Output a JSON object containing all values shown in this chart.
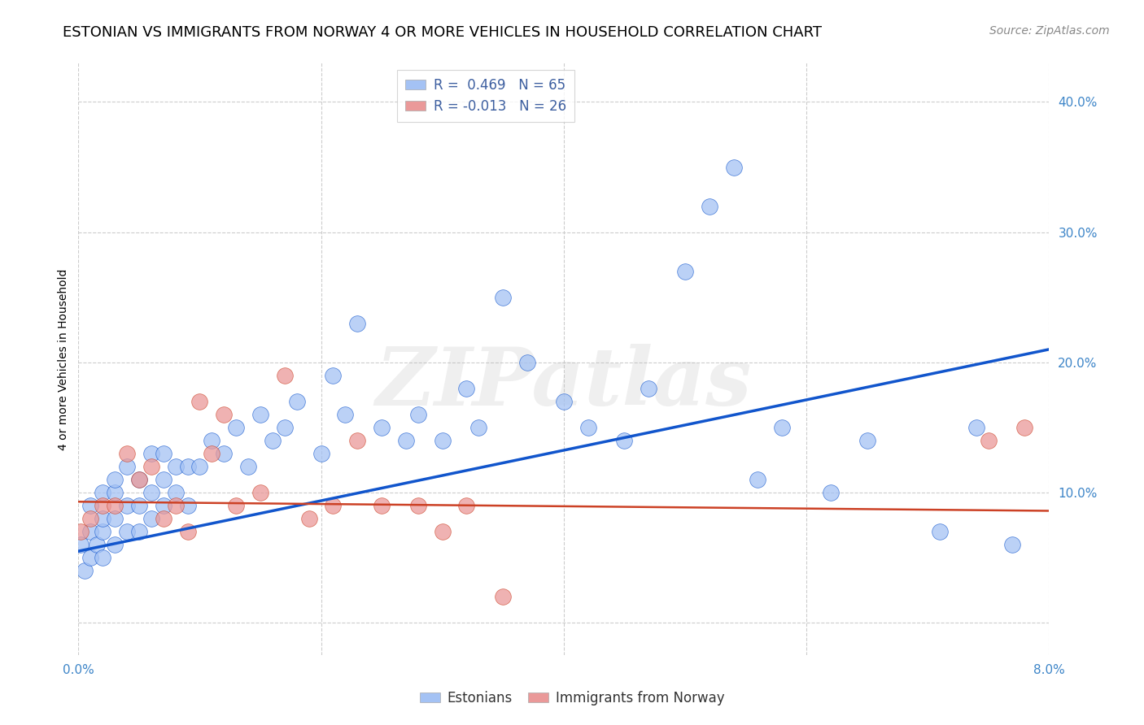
{
  "title": "ESTONIAN VS IMMIGRANTS FROM NORWAY 4 OR MORE VEHICLES IN HOUSEHOLD CORRELATION CHART",
  "source": "Source: ZipAtlas.com",
  "ylabel": "4 or more Vehicles in Household",
  "xmin": 0.0,
  "xmax": 0.08,
  "ymin": -0.025,
  "ymax": 0.43,
  "yticks": [
    0.0,
    0.1,
    0.2,
    0.3,
    0.4
  ],
  "ytick_labels": [
    "",
    "10.0%",
    "20.0%",
    "30.0%",
    "40.0%"
  ],
  "xticks": [
    0.0,
    0.02,
    0.04,
    0.06,
    0.08
  ],
  "xtick_labels": [
    "0.0%",
    "",
    "",
    "",
    "8.0%"
  ],
  "blue_R": 0.469,
  "blue_N": 65,
  "pink_R": -0.013,
  "pink_N": 26,
  "blue_color": "#a4c2f4",
  "pink_color": "#ea9999",
  "blue_line_color": "#1155cc",
  "pink_line_color": "#cc4125",
  "legend_label_blue": "Estonians",
  "legend_label_pink": "Immigrants from Norway",
  "watermark": "ZIPatlas",
  "blue_scatter_x": [
    0.0002,
    0.0005,
    0.001,
    0.001,
    0.001,
    0.0015,
    0.002,
    0.002,
    0.002,
    0.002,
    0.003,
    0.003,
    0.003,
    0.003,
    0.004,
    0.004,
    0.004,
    0.005,
    0.005,
    0.005,
    0.006,
    0.006,
    0.006,
    0.007,
    0.007,
    0.007,
    0.008,
    0.008,
    0.009,
    0.009,
    0.01,
    0.011,
    0.012,
    0.013,
    0.014,
    0.015,
    0.016,
    0.017,
    0.018,
    0.02,
    0.021,
    0.022,
    0.023,
    0.025,
    0.027,
    0.028,
    0.03,
    0.032,
    0.033,
    0.035,
    0.037,
    0.04,
    0.042,
    0.045,
    0.047,
    0.05,
    0.052,
    0.054,
    0.056,
    0.058,
    0.062,
    0.065,
    0.071,
    0.074,
    0.077
  ],
  "blue_scatter_y": [
    0.06,
    0.04,
    0.05,
    0.07,
    0.09,
    0.06,
    0.05,
    0.07,
    0.08,
    0.1,
    0.06,
    0.08,
    0.1,
    0.11,
    0.07,
    0.09,
    0.12,
    0.07,
    0.09,
    0.11,
    0.08,
    0.1,
    0.13,
    0.09,
    0.11,
    0.13,
    0.1,
    0.12,
    0.09,
    0.12,
    0.12,
    0.14,
    0.13,
    0.15,
    0.12,
    0.16,
    0.14,
    0.15,
    0.17,
    0.13,
    0.19,
    0.16,
    0.23,
    0.15,
    0.14,
    0.16,
    0.14,
    0.18,
    0.15,
    0.25,
    0.2,
    0.17,
    0.15,
    0.14,
    0.18,
    0.27,
    0.32,
    0.35,
    0.11,
    0.15,
    0.1,
    0.14,
    0.07,
    0.15,
    0.06
  ],
  "pink_scatter_x": [
    0.0002,
    0.001,
    0.002,
    0.003,
    0.004,
    0.005,
    0.006,
    0.007,
    0.008,
    0.009,
    0.01,
    0.011,
    0.012,
    0.013,
    0.015,
    0.017,
    0.019,
    0.021,
    0.023,
    0.025,
    0.028,
    0.03,
    0.032,
    0.035,
    0.075,
    0.078
  ],
  "pink_scatter_y": [
    0.07,
    0.08,
    0.09,
    0.09,
    0.13,
    0.11,
    0.12,
    0.08,
    0.09,
    0.07,
    0.17,
    0.13,
    0.16,
    0.09,
    0.1,
    0.19,
    0.08,
    0.09,
    0.14,
    0.09,
    0.09,
    0.07,
    0.09,
    0.02,
    0.14,
    0.15
  ],
  "blue_line_x": [
    0.0,
    0.08
  ],
  "blue_line_y": [
    0.055,
    0.21
  ],
  "pink_line_x": [
    0.0,
    0.08
  ],
  "pink_line_y": [
    0.093,
    0.086
  ],
  "title_fontsize": 13,
  "axis_label_fontsize": 10,
  "tick_fontsize": 11,
  "legend_fontsize": 12,
  "source_fontsize": 10
}
